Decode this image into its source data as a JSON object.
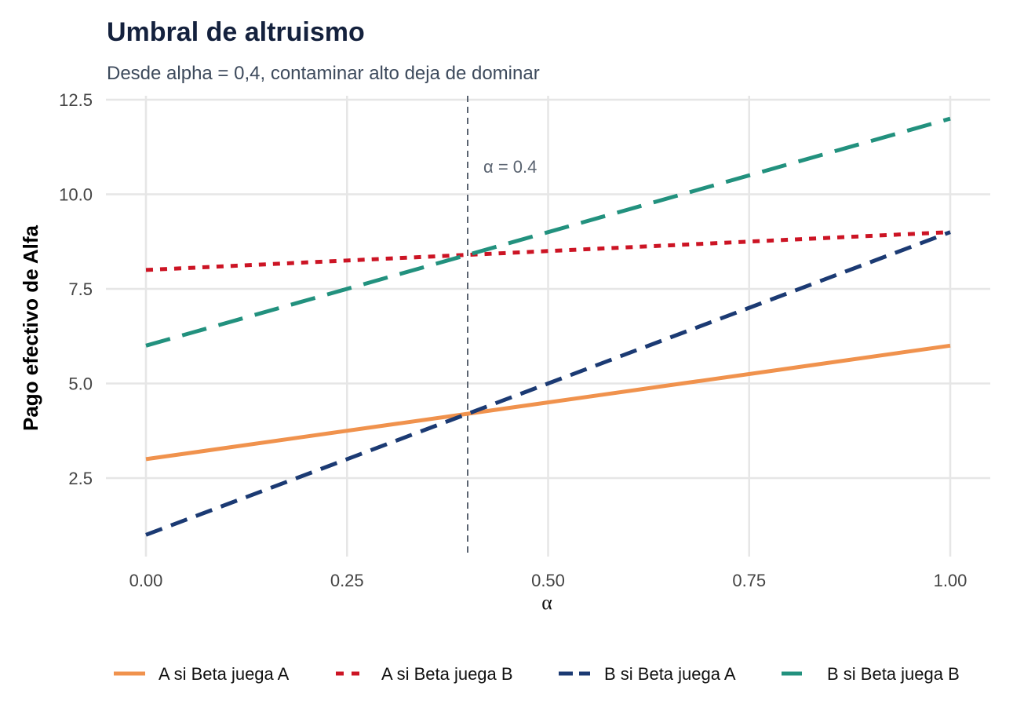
{
  "chart_data": {
    "type": "line",
    "title": "Umbral de altruismo",
    "subtitle": "Desde alpha = 0,4, contaminar alto deja de dominar",
    "xlabel": "α",
    "ylabel": "Pago efectivo de Alfa",
    "xlim": [
      0,
      1
    ],
    "ylim": [
      0.5,
      12.5
    ],
    "x_ticks": [
      "0.00",
      "0.25",
      "0.50",
      "0.75",
      "1.00"
    ],
    "x_tick_values": [
      0,
      0.25,
      0.5,
      0.75,
      1.0
    ],
    "y_ticks": [
      "2.5",
      "5.0",
      "7.5",
      "10.0",
      "12.5"
    ],
    "y_tick_values": [
      2.5,
      5.0,
      7.5,
      10.0,
      12.5
    ],
    "grid": true,
    "legend_position": "bottom",
    "annotation": {
      "text": "α = 0.4",
      "x": 0.4
    },
    "series": [
      {
        "name": "A si Beta juega A",
        "x": [
          0,
          1
        ],
        "values": [
          3,
          6
        ],
        "color": "#f0924d",
        "dash": "solid"
      },
      {
        "name": "A si Beta juega B",
        "x": [
          0,
          1
        ],
        "values": [
          8,
          9
        ],
        "color": "#cc1424",
        "dash": "dotted"
      },
      {
        "name": "B si Beta juega A",
        "x": [
          0,
          1
        ],
        "values": [
          1,
          9
        ],
        "color": "#1b3a73",
        "dash": "dashed"
      },
      {
        "name": "B si Beta juega B",
        "x": [
          0,
          1
        ],
        "values": [
          6,
          12
        ],
        "color": "#22917e",
        "dash": "longdash"
      }
    ]
  }
}
